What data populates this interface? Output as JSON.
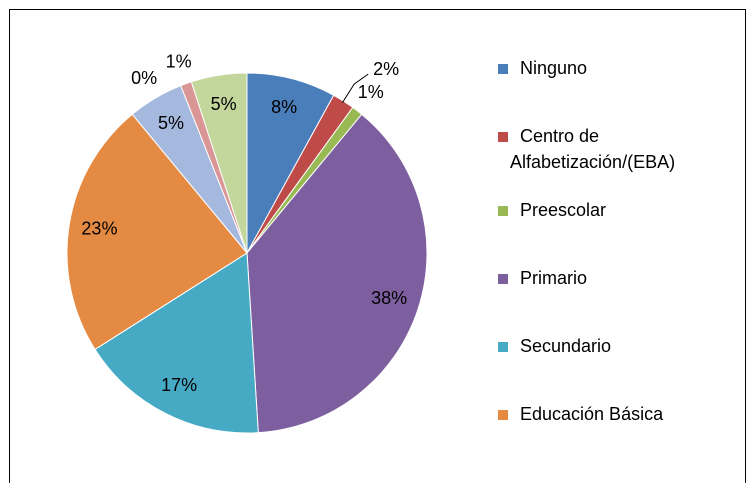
{
  "chart_data": {
    "type": "pie",
    "categories": [
      "Ninguno",
      "Centro de Alfabetización/(EBA)",
      "Preescolar",
      "Primario",
      "Secundario",
      "Educación Básica",
      null,
      null,
      null,
      null
    ],
    "values": [
      8,
      2,
      1,
      38,
      17,
      23,
      5,
      1,
      0,
      5
    ],
    "colors": [
      "#4a7ebb",
      "#be4b48",
      "#98b954",
      "#7d5fa0",
      "#46aac5",
      "#e48a43",
      "#a5b8dd",
      "#d99694",
      "#c3d69b",
      "#c3d69b"
    ],
    "legend": "right"
  }
}
